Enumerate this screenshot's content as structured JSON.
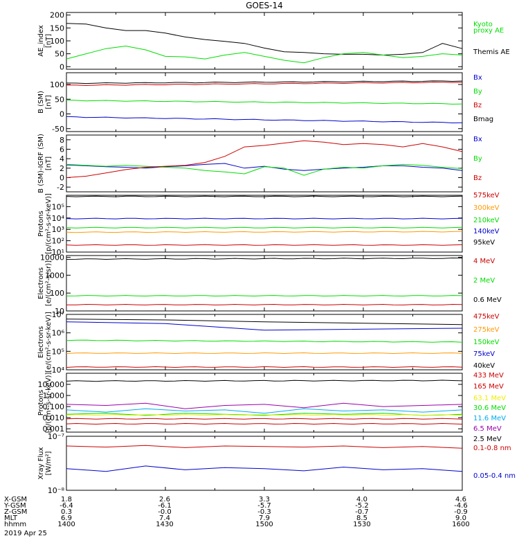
{
  "title": "GOES-14",
  "colors": {
    "black": "#000000",
    "red": "#cc0000",
    "green": "#00dd00",
    "blue": "#0000cc",
    "orange": "#ff9900",
    "yellow": "#eeee00",
    "cyan": "#00aaee",
    "purple": "#9900aa"
  },
  "footer": {
    "row_labels": [
      "X-GSM",
      "Y-GSM",
      "Z-GSM",
      "MLT",
      "hhmm"
    ],
    "columns": [
      [
        "1.8",
        "-6.4",
        "0.3",
        "6.9",
        "1400"
      ],
      [
        "2.6",
        "-6.1",
        "-0.0",
        "7.4",
        "1430"
      ],
      [
        "3.3",
        "-5.7",
        "-0.3",
        "7.9",
        "1500"
      ],
      [
        "4.0",
        "-5.2",
        "-0.7",
        "8.5",
        "1530"
      ],
      [
        "4.6",
        "-4.6",
        "-0.9",
        "9.0",
        "1600"
      ]
    ],
    "date": "2019 Apr 25"
  },
  "chart_data": [
    {
      "type": "line",
      "ylabel": [
        "AE_index",
        "[nT]"
      ],
      "scale": "linear",
      "ylim": [
        -10,
        210
      ],
      "ticks": [
        {
          "v": 0,
          "t": "0"
        },
        {
          "v": 50,
          "t": "50"
        },
        {
          "v": 100,
          "t": "100"
        },
        {
          "v": 150,
          "t": "150"
        },
        {
          "v": 200,
          "t": "200"
        }
      ],
      "x_range": [
        1400,
        1600
      ],
      "legend": [
        {
          "text": "Kyoto",
          "color": "green"
        },
        {
          "text": "proxy AE",
          "color": "green"
        },
        {
          "text": "",
          "color": "black"
        },
        {
          "text": "Themis AE",
          "color": "black"
        }
      ],
      "series": [
        {
          "name": "Themis AE",
          "color": "black",
          "x": [
            1400,
            1410,
            1420,
            1430,
            1440,
            1450,
            1460,
            1470,
            1480,
            1490,
            1500,
            1510,
            1520,
            1530,
            1540,
            1550,
            1560,
            1570,
            1580,
            1590,
            1600
          ],
          "y": [
            168,
            165,
            150,
            140,
            140,
            130,
            115,
            105,
            98,
            90,
            72,
            58,
            55,
            50,
            48,
            48,
            45,
            48,
            55,
            90,
            70
          ]
        },
        {
          "name": "Kyoto proxy AE",
          "color": "green",
          "x": [
            1400,
            1410,
            1420,
            1430,
            1440,
            1450,
            1460,
            1470,
            1480,
            1490,
            1500,
            1510,
            1520,
            1530,
            1540,
            1550,
            1560,
            1570,
            1580,
            1590,
            1600
          ],
          "y": [
            30,
            50,
            70,
            80,
            65,
            40,
            38,
            30,
            45,
            55,
            40,
            25,
            15,
            35,
            50,
            55,
            45,
            35,
            40,
            50,
            45
          ]
        }
      ]
    },
    {
      "type": "line",
      "ylabel": [
        "B (SM)",
        "[nT]"
      ],
      "scale": "linear",
      "ylim": [
        -60,
        140
      ],
      "ticks": [
        {
          "v": -50,
          "t": "-50"
        },
        {
          "v": 0,
          "t": "0"
        },
        {
          "v": 50,
          "t": "50"
        },
        {
          "v": 100,
          "t": "100"
        }
      ],
      "x_range": [
        1400,
        1600
      ],
      "legend": [
        {
          "text": "Bx",
          "color": "blue"
        },
        {
          "text": "By",
          "color": "green"
        },
        {
          "text": "Bz",
          "color": "red"
        },
        {
          "text": "Bmag",
          "color": "black"
        }
      ],
      "series": [
        {
          "name": "Bmag",
          "color": "black",
          "x": [
            1400,
            1600
          ],
          "y": [
            104,
            112
          ]
        },
        {
          "name": "Bz",
          "color": "red",
          "x": [
            1400,
            1600
          ],
          "y": [
            97,
            108
          ]
        },
        {
          "name": "By",
          "color": "green",
          "x": [
            1400,
            1600
          ],
          "y": [
            46,
            34
          ]
        },
        {
          "name": "Bx",
          "color": "blue",
          "x": [
            1400,
            1600
          ],
          "y": [
            -10,
            -30
          ]
        }
      ]
    },
    {
      "type": "line",
      "ylabel": [
        "B (SM)-IGRF (SM)",
        "[nT]"
      ],
      "scale": "linear",
      "ylim": [
        -3,
        9
      ],
      "ticks": [
        {
          "v": -2,
          "t": "-2"
        },
        {
          "v": 0,
          "t": "0"
        },
        {
          "v": 2,
          "t": "2"
        },
        {
          "v": 4,
          "t": "4"
        },
        {
          "v": 6,
          "t": "6"
        },
        {
          "v": 8,
          "t": "8"
        }
      ],
      "x_range": [
        1400,
        1600
      ],
      "legend": [
        {
          "text": "Bx",
          "color": "blue"
        },
        {
          "text": "By",
          "color": "green"
        },
        {
          "text": "Bz",
          "color": "red"
        }
      ],
      "series": [
        {
          "name": "Bx",
          "color": "blue",
          "x": [
            1400,
            1410,
            1420,
            1430,
            1440,
            1450,
            1460,
            1470,
            1480,
            1490,
            1500,
            1510,
            1520,
            1530,
            1540,
            1550,
            1560,
            1570,
            1580,
            1590,
            1600
          ],
          "y": [
            2.7,
            2.5,
            2.3,
            2.2,
            2.0,
            2.3,
            2.5,
            2.8,
            3.0,
            2.0,
            2.4,
            1.8,
            1.5,
            1.8,
            2.0,
            2.2,
            2.5,
            2.5,
            2.2,
            2.0,
            1.5
          ]
        },
        {
          "name": "By",
          "color": "green",
          "x": [
            1400,
            1410,
            1420,
            1430,
            1440,
            1450,
            1460,
            1470,
            1480,
            1490,
            1500,
            1510,
            1520,
            1530,
            1540,
            1550,
            1560,
            1570,
            1580,
            1590,
            1600
          ],
          "y": [
            2.8,
            2.6,
            2.4,
            2.6,
            2.4,
            2.2,
            2.0,
            1.5,
            1.2,
            0.8,
            2.3,
            2.0,
            0.5,
            1.8,
            2.2,
            2.0,
            2.5,
            2.8,
            2.6,
            2.2,
            1.9
          ]
        },
        {
          "name": "Bz",
          "color": "red",
          "x": [
            1400,
            1410,
            1420,
            1430,
            1440,
            1450,
            1460,
            1470,
            1480,
            1490,
            1500,
            1510,
            1520,
            1530,
            1540,
            1550,
            1560,
            1570,
            1580,
            1590,
            1600
          ],
          "y": [
            0.0,
            0.3,
            1.0,
            1.7,
            2.2,
            2.4,
            2.6,
            3.2,
            4.5,
            6.5,
            6.8,
            7.3,
            7.8,
            7.5,
            7.0,
            7.2,
            7.0,
            6.5,
            7.2,
            6.5,
            5.5
          ]
        }
      ]
    },
    {
      "type": "line",
      "ylabel": [
        "Protons",
        "[p/(cm²-s-sr-keV)]"
      ],
      "scale": "log",
      "ylim": [
        1,
        6
      ],
      "ticks": [
        {
          "v": 1,
          "t": "10¹"
        },
        {
          "v": 2,
          "t": "10²"
        },
        {
          "v": 3,
          "t": "10³"
        },
        {
          "v": 4,
          "t": "10⁴"
        },
        {
          "v": 5,
          "t": "10⁵"
        }
      ],
      "x_range": [
        1400,
        1600
      ],
      "legend": [
        {
          "text": "575keV",
          "color": "red"
        },
        {
          "text": "300keV",
          "color": "orange"
        },
        {
          "text": "210keV",
          "color": "green"
        },
        {
          "text": "140keV",
          "color": "blue"
        },
        {
          "text": "95keV",
          "color": "black"
        }
      ],
      "series": [
        {
          "name": "95keV",
          "color": "black",
          "x": [
            1400,
            1600
          ],
          "y": [
            5.9,
            5.9
          ]
        },
        {
          "name": "140keV",
          "color": "blue",
          "x": [
            1400,
            1600
          ],
          "y": [
            3.95,
            3.95
          ]
        },
        {
          "name": "210keV",
          "color": "green",
          "x": [
            1400,
            1600
          ],
          "y": [
            3.15,
            3.15
          ]
        },
        {
          "name": "300keV",
          "color": "orange",
          "x": [
            1400,
            1600
          ],
          "y": [
            2.75,
            2.8
          ]
        },
        {
          "name": "575keV",
          "color": "red",
          "x": [
            1400,
            1600
          ],
          "y": [
            1.62,
            1.62
          ]
        }
      ]
    },
    {
      "type": "line",
      "ylabel": [
        "Electrons",
        "[e/(cm²-s-sr)]"
      ],
      "scale": "log",
      "ylim": [
        1,
        4.1
      ],
      "ticks": [
        {
          "v": 1,
          "t": "10"
        },
        {
          "v": 2,
          "t": "100"
        },
        {
          "v": 3,
          "t": "1000"
        },
        {
          "v": 4,
          "t": "10000"
        }
      ],
      "x_range": [
        1400,
        1600
      ],
      "legend": [
        {
          "text": "4 MeV",
          "color": "red"
        },
        {
          "text": "2 MeV",
          "color": "green"
        },
        {
          "text": "0.6 MeV",
          "color": "black"
        }
      ],
      "series": [
        {
          "name": "0.6 MeV",
          "color": "black",
          "x": [
            1400,
            1600
          ],
          "y": [
            3.9,
            3.95
          ]
        },
        {
          "name": "2 MeV",
          "color": "green",
          "x": [
            1400,
            1600
          ],
          "y": [
            1.85,
            1.85
          ]
        },
        {
          "name": "4 MeV",
          "color": "red",
          "x": [
            1400,
            1600
          ],
          "y": [
            1.35,
            1.35
          ]
        }
      ]
    },
    {
      "type": "line",
      "ylabel": [
        "Electrons",
        "[e/(cm²-s-sr-keV)]"
      ],
      "scale": "log",
      "ylim": [
        4,
        7
      ],
      "ticks": [
        {
          "v": 4,
          "t": "10⁴"
        },
        {
          "v": 5,
          "t": "10⁵"
        },
        {
          "v": 6,
          "t": "10⁶"
        },
        {
          "v": 7,
          "t": "10⁷"
        }
      ],
      "x_range": [
        1400,
        1600
      ],
      "legend": [
        {
          "text": "475keV",
          "color": "red"
        },
        {
          "text": "275keV",
          "color": "orange"
        },
        {
          "text": "150keV",
          "color": "green"
        },
        {
          "text": "75keV",
          "color": "blue"
        },
        {
          "text": "40keV",
          "color": "black"
        }
      ],
      "series": [
        {
          "name": "40keV",
          "color": "black",
          "x": [
            1400,
            1450,
            1500,
            1600
          ],
          "y": [
            6.75,
            6.7,
            6.6,
            6.45
          ]
        },
        {
          "name": "75keV",
          "color": "blue",
          "x": [
            1400,
            1450,
            1500,
            1600
          ],
          "y": [
            6.6,
            6.5,
            6.15,
            6.25
          ]
        },
        {
          "name": "150keV",
          "color": "green",
          "x": [
            1400,
            1600
          ],
          "y": [
            5.6,
            5.5
          ]
        },
        {
          "name": "275keV",
          "color": "orange",
          "x": [
            1400,
            1600
          ],
          "y": [
            4.9,
            4.9
          ]
        },
        {
          "name": "475keV",
          "color": "red",
          "x": [
            1400,
            1600
          ],
          "y": [
            4.15,
            4.15
          ]
        }
      ]
    },
    {
      "type": "line",
      "ylabel": [
        "Protons",
        "[p/(cm²-s-sr-keV)]"
      ],
      "scale": "log",
      "ylim": [
        -3.3,
        2
      ],
      "ticks": [
        {
          "v": -3,
          "t": "0.001"
        },
        {
          "v": -2,
          "t": "0.010"
        },
        {
          "v": -1,
          "t": "0.100"
        },
        {
          "v": 0,
          "t": "1.000"
        },
        {
          "v": 1,
          "t": "10.000"
        }
      ],
      "x_range": [
        1400,
        1600
      ],
      "legend": [
        {
          "text": "433 MeV",
          "color": "red"
        },
        {
          "text": "165 MeV",
          "color": "red"
        },
        {
          "text": "63.1 MeV",
          "color": "yellow"
        },
        {
          "text": "30.6 MeV",
          "color": "green"
        },
        {
          "text": "11.6 MeV",
          "color": "cyan"
        },
        {
          "text": "6.5 MeV",
          "color": "purple"
        },
        {
          "text": "2.5 MeV",
          "color": "black"
        }
      ],
      "series": [
        {
          "name": "2.5 MeV",
          "color": "black",
          "x": [
            1400,
            1600
          ],
          "y": [
            1.3,
            1.35
          ]
        },
        {
          "name": "6.5 MeV",
          "color": "purple",
          "x": [
            1400,
            1420,
            1440,
            1460,
            1480,
            1500,
            1520,
            1540,
            1560,
            1580,
            1600
          ],
          "y": [
            -0.8,
            -0.9,
            -0.7,
            -1.2,
            -0.9,
            -0.8,
            -1.1,
            -0.7,
            -1.0,
            -0.9,
            -0.8
          ]
        },
        {
          "name": "11.6 MeV",
          "color": "cyan",
          "x": [
            1400,
            1420,
            1440,
            1460,
            1480,
            1500,
            1520,
            1540,
            1560,
            1580,
            1600
          ],
          "y": [
            -1.3,
            -1.5,
            -1.2,
            -1.4,
            -1.3,
            -1.6,
            -1.2,
            -1.4,
            -1.3,
            -1.5,
            -1.3
          ]
        },
        {
          "name": "30.6 MeV",
          "color": "green",
          "x": [
            1400,
            1420,
            1440,
            1460,
            1480,
            1500,
            1520,
            1540,
            1560,
            1580,
            1600
          ],
          "y": [
            -1.7,
            -1.6,
            -1.8,
            -1.6,
            -1.7,
            -1.8,
            -1.6,
            -1.7,
            -1.6,
            -1.8,
            -1.7
          ]
        },
        {
          "name": "63.1 MeV",
          "color": "yellow",
          "x": [
            1400,
            1600
          ],
          "y": [
            -1.75,
            -1.75
          ]
        },
        {
          "name": "165 MeV",
          "color": "red",
          "x": [
            1400,
            1600
          ],
          "y": [
            -2.1,
            -2.1
          ]
        },
        {
          "name": "433 MeV",
          "color": "red",
          "x": [
            1400,
            1600
          ],
          "y": [
            -2.55,
            -2.55
          ]
        }
      ]
    },
    {
      "type": "line",
      "ylabel": [
        "Xray Flux",
        "[W/m²]"
      ],
      "scale": "log",
      "ylim": [
        -8,
        -7
      ],
      "ticks": [
        {
          "v": -8,
          "t": "10⁻⁸"
        },
        {
          "v": -7,
          "t": "10⁻⁷"
        }
      ],
      "x_range": [
        1400,
        1600
      ],
      "legend": [
        {
          "text": "0.1-0.8 nm",
          "color": "red"
        },
        {
          "text": "0.05-0.4 nm",
          "color": "blue"
        }
      ],
      "series": [
        {
          "name": "0.1-0.8 nm",
          "color": "red",
          "x": [
            1400,
            1420,
            1440,
            1460,
            1480,
            1500,
            1520,
            1540,
            1560,
            1580,
            1600
          ],
          "y": [
            -7.18,
            -7.2,
            -7.17,
            -7.21,
            -7.18,
            -7.19,
            -7.2,
            -7.18,
            -7.21,
            -7.19,
            -7.22
          ]
        },
        {
          "name": "0.05-0.4 nm",
          "color": "blue",
          "x": [
            1400,
            1420,
            1440,
            1460,
            1480,
            1500,
            1520,
            1540,
            1560,
            1580,
            1600
          ],
          "y": [
            -7.6,
            -7.65,
            -7.55,
            -7.62,
            -7.58,
            -7.6,
            -7.64,
            -7.57,
            -7.62,
            -7.6,
            -7.65
          ]
        }
      ]
    }
  ]
}
